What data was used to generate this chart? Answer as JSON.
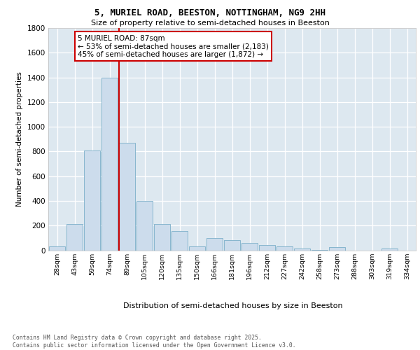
{
  "title_line1": "5, MURIEL ROAD, BEESTON, NOTTINGHAM, NG9 2HH",
  "title_line2": "Size of property relative to semi-detached houses in Beeston",
  "xlabel": "Distribution of semi-detached houses by size in Beeston",
  "ylabel": "Number of semi-detached properties",
  "categories": [
    "28sqm",
    "43sqm",
    "59sqm",
    "74sqm",
    "89sqm",
    "105sqm",
    "120sqm",
    "135sqm",
    "150sqm",
    "166sqm",
    "181sqm",
    "196sqm",
    "212sqm",
    "227sqm",
    "242sqm",
    "258sqm",
    "273sqm",
    "288sqm",
    "303sqm",
    "319sqm",
    "334sqm"
  ],
  "values": [
    30,
    210,
    810,
    1400,
    870,
    400,
    215,
    155,
    30,
    100,
    80,
    60,
    40,
    30,
    15,
    5,
    25,
    0,
    0,
    15,
    0
  ],
  "bar_color": "#ccdcec",
  "bar_edge_color": "#7aaec8",
  "red_line_index": 4,
  "annotation_title": "5 MURIEL ROAD: 87sqm",
  "annotation_line1": "← 53% of semi-detached houses are smaller (2,183)",
  "annotation_line2": "45% of semi-detached houses are larger (1,872) →",
  "footer_line1": "Contains HM Land Registry data © Crown copyright and database right 2025.",
  "footer_line2": "Contains public sector information licensed under the Open Government Licence v3.0.",
  "ylim": [
    0,
    1800
  ],
  "yticks": [
    0,
    200,
    400,
    600,
    800,
    1000,
    1200,
    1400,
    1600,
    1800
  ],
  "plot_bg_color": "#dde8f0",
  "grid_color": "#ffffff"
}
